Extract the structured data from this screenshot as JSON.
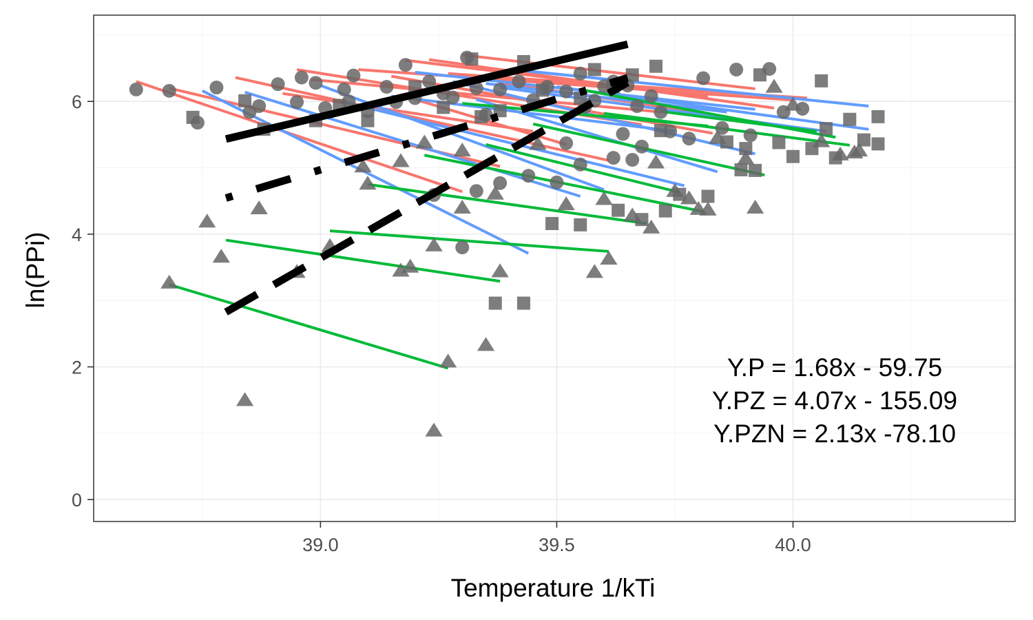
{
  "chart_data": {
    "type": "scatter",
    "xlabel": "Temperature 1/kTi",
    "ylabel": "ln(PPi)",
    "xlim": [
      38.52,
      40.47
    ],
    "ylim": [
      -0.33,
      7.3
    ],
    "x_ticks": [
      39.0,
      39.5,
      40.0
    ],
    "x_tick_labels": [
      "39.0",
      "39.5",
      "40.0"
    ],
    "y_ticks": [
      0,
      2,
      4,
      6
    ],
    "y_tick_labels": [
      "0",
      "2",
      "4",
      "6"
    ],
    "grid": true,
    "annotations": [
      "Y.P = 1.68x - 59.75",
      "Y.PZ = 4.07x - 155.09",
      "Y.PZN = 2.13x -78.10"
    ],
    "colors": {
      "red": "#F8766D",
      "blue": "#619CFF",
      "green": "#00BA38",
      "points": "#666666",
      "regression": "#000000"
    },
    "point_series": [
      {
        "shape": "circle",
        "points": [
          [
            38.61,
            6.18
          ],
          [
            38.68,
            6.16
          ],
          [
            38.74,
            5.68
          ],
          [
            38.78,
            6.21
          ],
          [
            38.85,
            5.84
          ],
          [
            38.87,
            5.93
          ],
          [
            38.91,
            6.26
          ],
          [
            38.95,
            5.99
          ],
          [
            38.96,
            6.36
          ],
          [
            38.99,
            6.28
          ],
          [
            39.01,
            5.9
          ],
          [
            39.05,
            6.18
          ],
          [
            39.07,
            6.39
          ],
          [
            39.1,
            5.85
          ],
          [
            39.14,
            6.22
          ],
          [
            39.18,
            6.55
          ],
          [
            39.2,
            6.05
          ],
          [
            39.23,
            6.3
          ],
          [
            39.26,
            6.12
          ],
          [
            39.28,
            6.06
          ],
          [
            39.31,
            6.66
          ],
          [
            39.33,
            6.2
          ],
          [
            39.35,
            5.8
          ],
          [
            39.38,
            6.18
          ],
          [
            39.42,
            6.3
          ],
          [
            39.45,
            6.02
          ],
          [
            39.48,
            6.22
          ],
          [
            39.52,
            6.15
          ],
          [
            39.55,
            6.42
          ],
          [
            39.58,
            6.01
          ],
          [
            39.6,
            6.23
          ],
          [
            39.62,
            6.3
          ],
          [
            39.65,
            6.24
          ],
          [
            39.67,
            5.93
          ],
          [
            39.7,
            6.08
          ],
          [
            39.72,
            5.84
          ],
          [
            39.74,
            5.55
          ],
          [
            39.78,
            5.44
          ],
          [
            39.81,
            6.35
          ],
          [
            39.85,
            5.6
          ],
          [
            39.88,
            6.48
          ],
          [
            39.91,
            5.49
          ],
          [
            39.95,
            6.49
          ],
          [
            39.98,
            5.84
          ],
          [
            40.02,
            5.89
          ],
          [
            39.64,
            5.51
          ],
          [
            39.56,
            5.92
          ],
          [
            39.62,
            5.15
          ],
          [
            39.66,
            5.12
          ],
          [
            39.68,
            5.32
          ],
          [
            39.52,
            5.37
          ],
          [
            39.55,
            5.05
          ],
          [
            39.5,
            4.78
          ],
          [
            39.44,
            4.88
          ],
          [
            39.38,
            4.77
          ],
          [
            39.33,
            4.65
          ],
          [
            39.3,
            3.8
          ],
          [
            39.24,
            4.59
          ],
          [
            39.16,
            5.99
          ],
          [
            39.06,
            6.0
          ]
        ]
      },
      {
        "shape": "square",
        "points": [
          [
            38.73,
            5.76
          ],
          [
            38.84,
            6.01
          ],
          [
            38.88,
            5.58
          ],
          [
            38.99,
            5.71
          ],
          [
            39.04,
            5.94
          ],
          [
            39.1,
            5.71
          ],
          [
            39.2,
            6.22
          ],
          [
            39.26,
            5.91
          ],
          [
            39.32,
            6.64
          ],
          [
            39.34,
            5.77
          ],
          [
            39.38,
            5.86
          ],
          [
            39.43,
            6.6
          ],
          [
            39.47,
            6.17
          ],
          [
            39.55,
            6.05
          ],
          [
            39.58,
            6.48
          ],
          [
            39.62,
            6.22
          ],
          [
            39.66,
            6.4
          ],
          [
            39.71,
            6.53
          ],
          [
            39.72,
            5.56
          ],
          [
            39.76,
            4.6
          ],
          [
            39.82,
            4.57
          ],
          [
            39.86,
            5.39
          ],
          [
            39.89,
            4.97
          ],
          [
            39.92,
            4.96
          ],
          [
            39.93,
            6.4
          ],
          [
            39.97,
            5.38
          ],
          [
            40.0,
            5.17
          ],
          [
            40.04,
            5.29
          ],
          [
            40.06,
            6.31
          ],
          [
            40.09,
            5.15
          ],
          [
            40.12,
            5.73
          ],
          [
            40.15,
            5.42
          ],
          [
            40.18,
            5.36
          ],
          [
            40.18,
            5.77
          ],
          [
            39.49,
            4.16
          ],
          [
            39.55,
            4.14
          ],
          [
            39.63,
            4.36
          ],
          [
            39.68,
            4.22
          ],
          [
            39.73,
            4.35
          ],
          [
            39.37,
            2.96
          ],
          [
            39.43,
            2.96
          ],
          [
            39.9,
            5.29
          ],
          [
            40.07,
            5.59
          ]
        ]
      },
      {
        "shape": "triangle",
        "points": [
          [
            38.68,
            3.27
          ],
          [
            38.76,
            4.19
          ],
          [
            38.79,
            3.66
          ],
          [
            38.84,
            1.5
          ],
          [
            38.87,
            4.39
          ],
          [
            38.95,
            3.43
          ],
          [
            39.02,
            3.82
          ],
          [
            39.09,
            5.02
          ],
          [
            39.1,
            4.76
          ],
          [
            39.17,
            5.1
          ],
          [
            39.17,
            3.45
          ],
          [
            39.19,
            3.51
          ],
          [
            39.22,
            5.38
          ],
          [
            39.24,
            3.83
          ],
          [
            39.24,
            1.04
          ],
          [
            39.27,
            2.08
          ],
          [
            39.3,
            5.26
          ],
          [
            39.3,
            4.4
          ],
          [
            39.35,
            2.33
          ],
          [
            39.37,
            4.61
          ],
          [
            39.38,
            3.44
          ],
          [
            39.46,
            5.36
          ],
          [
            39.52,
            4.45
          ],
          [
            39.58,
            3.43
          ],
          [
            39.6,
            4.53
          ],
          [
            39.61,
            3.63
          ],
          [
            39.66,
            4.28
          ],
          [
            39.7,
            4.1
          ],
          [
            39.71,
            5.08
          ],
          [
            39.75,
            4.65
          ],
          [
            39.78,
            4.54
          ],
          [
            39.8,
            4.38
          ],
          [
            39.82,
            4.37
          ],
          [
            39.84,
            5.45
          ],
          [
            39.9,
            5.14
          ],
          [
            39.92,
            4.4
          ],
          [
            39.96,
            6.22
          ],
          [
            40.0,
            5.95
          ],
          [
            40.06,
            5.4
          ],
          [
            40.1,
            5.2
          ],
          [
            40.13,
            5.23
          ],
          [
            40.14,
            5.26
          ]
        ]
      }
    ],
    "fit_lines": [
      {
        "color": "red",
        "from": [
          38.61,
          6.3
        ],
        "to": [
          39.3,
          4.64
        ]
      },
      {
        "color": "red",
        "from": [
          38.68,
          6.2
        ],
        "to": [
          39.38,
          5.02
        ]
      },
      {
        "color": "red",
        "from": [
          38.82,
          6.36
        ],
        "to": [
          39.61,
          5.11
        ]
      },
      {
        "color": "red",
        "from": [
          38.92,
          6.12
        ],
        "to": [
          39.45,
          5.55
        ]
      },
      {
        "color": "red",
        "from": [
          38.95,
          6.48
        ],
        "to": [
          39.68,
          5.65
        ]
      },
      {
        "color": "red",
        "from": [
          38.98,
          6.33
        ],
        "to": [
          39.72,
          5.84
        ]
      },
      {
        "color": "red",
        "from": [
          39.08,
          6.48
        ],
        "to": [
          40.0,
          6.02
        ]
      },
      {
        "color": "red",
        "from": [
          39.15,
          6.38
        ],
        "to": [
          39.83,
          5.52
        ]
      },
      {
        "color": "red",
        "from": [
          39.18,
          6.62
        ],
        "to": [
          39.82,
          6.07
        ]
      },
      {
        "color": "red",
        "from": [
          39.23,
          6.63
        ],
        "to": [
          39.96,
          5.9
        ]
      },
      {
        "color": "red",
        "from": [
          39.27,
          6.42
        ],
        "to": [
          40.03,
          6.05
        ]
      },
      {
        "color": "red",
        "from": [
          39.3,
          6.7
        ],
        "to": [
          39.92,
          6.19
        ]
      },
      {
        "color": "red",
        "from": [
          39.2,
          6.03
        ],
        "to": [
          39.52,
          5.35
        ]
      },
      {
        "color": "red",
        "from": [
          39.38,
          6.28
        ],
        "to": [
          39.82,
          5.82
        ]
      },
      {
        "color": "blue",
        "from": [
          38.75,
          6.16
        ],
        "to": [
          39.44,
          3.71
        ]
      },
      {
        "color": "blue",
        "from": [
          38.84,
          6.14
        ],
        "to": [
          39.55,
          4.57
        ]
      },
      {
        "color": "blue",
        "from": [
          39.0,
          6.24
        ],
        "to": [
          39.6,
          4.67
        ]
      },
      {
        "color": "blue",
        "from": [
          39.05,
          5.99
        ],
        "to": [
          39.77,
          4.73
        ]
      },
      {
        "color": "blue",
        "from": [
          39.15,
          6.08
        ],
        "to": [
          39.75,
          5.55
        ]
      },
      {
        "color": "blue",
        "from": [
          39.2,
          6.44
        ],
        "to": [
          39.92,
          5.88
        ]
      },
      {
        "color": "blue",
        "from": [
          39.28,
          6.3
        ],
        "to": [
          39.92,
          5.21
        ]
      },
      {
        "color": "blue",
        "from": [
          39.33,
          6.03
        ],
        "to": [
          39.84,
          4.94
        ]
      },
      {
        "color": "blue",
        "from": [
          39.38,
          6.21
        ],
        "to": [
          40.07,
          5.55
        ]
      },
      {
        "color": "blue",
        "from": [
          39.42,
          6.47
        ],
        "to": [
          40.16,
          5.93
        ]
      },
      {
        "color": "blue",
        "from": [
          39.5,
          6.22
        ],
        "to": [
          40.16,
          5.58
        ]
      },
      {
        "color": "blue",
        "from": [
          39.35,
          6.27
        ],
        "to": [
          39.86,
          5.84
        ]
      },
      {
        "color": "green",
        "from": [
          38.68,
          3.24
        ],
        "to": [
          39.27,
          1.98
        ]
      },
      {
        "color": "green",
        "from": [
          38.8,
          3.91
        ],
        "to": [
          39.38,
          3.29
        ]
      },
      {
        "color": "green",
        "from": [
          39.02,
          4.05
        ],
        "to": [
          39.61,
          3.74
        ]
      },
      {
        "color": "green",
        "from": [
          39.1,
          4.75
        ],
        "to": [
          39.69,
          4.16
        ]
      },
      {
        "color": "green",
        "from": [
          39.22,
          5.19
        ],
        "to": [
          39.81,
          4.34
        ]
      },
      {
        "color": "green",
        "from": [
          39.35,
          5.35
        ],
        "to": [
          39.76,
          4.63
        ]
      },
      {
        "color": "green",
        "from": [
          39.45,
          5.66
        ],
        "to": [
          39.94,
          4.89
        ]
      },
      {
        "color": "green",
        "from": [
          39.55,
          6.18
        ],
        "to": [
          40.09,
          5.46
        ]
      },
      {
        "color": "green",
        "from": [
          39.6,
          5.82
        ],
        "to": [
          40.12,
          5.34
        ]
      },
      {
        "color": "green",
        "from": [
          39.72,
          5.85
        ],
        "to": [
          40.05,
          5.55
        ]
      },
      {
        "color": "green",
        "from": [
          39.3,
          5.97
        ],
        "to": [
          39.82,
          5.63
        ]
      }
    ],
    "regression_lines": [
      {
        "name": "Y.P",
        "slope": 1.68,
        "intercept": -59.75,
        "x_range": [
          38.8,
          39.65
        ],
        "dash": "solid"
      },
      {
        "name": "Y.PZ",
        "slope": 4.07,
        "intercept": -155.09,
        "x_range": [
          38.8,
          39.65
        ],
        "dash": "long"
      },
      {
        "name": "Y.PZN",
        "slope": 2.13,
        "intercept": -78.1,
        "x_range": [
          38.8,
          39.65
        ],
        "dash": "dotdash"
      }
    ]
  }
}
